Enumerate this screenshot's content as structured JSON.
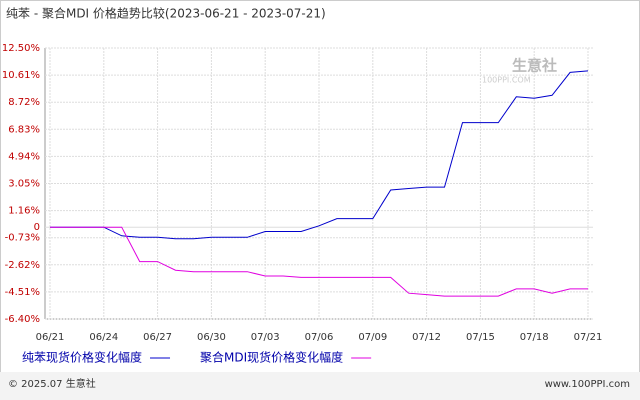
{
  "chart_data": {
    "type": "line",
    "title": "纯苯 - 聚合MDI 价格趋势比较(2023-06-21 - 2023-07-21)",
    "categories": [
      "06/21",
      null,
      null,
      "06/24",
      null,
      null,
      "06/27",
      null,
      null,
      "06/30",
      null,
      null,
      "07/03",
      null,
      null,
      "07/06",
      null,
      null,
      "07/09",
      null,
      null,
      "07/12",
      null,
      null,
      "07/15",
      null,
      null,
      "07/18",
      null,
      null,
      "07/21"
    ],
    "series": [
      {
        "name": "纯苯现货价格变化幅度",
        "color": "#0000cc",
        "values": [
          0,
          0,
          0,
          0,
          -0.6,
          -0.7,
          -0.7,
          -0.8,
          -0.8,
          -0.7,
          -0.7,
          -0.7,
          -0.3,
          -0.3,
          -0.3,
          0.1,
          0.6,
          0.6,
          0.6,
          2.6,
          2.7,
          2.8,
          2.8,
          7.3,
          7.3,
          7.3,
          9.1,
          9.0,
          9.2,
          10.8,
          10.9
        ]
      },
      {
        "name": "聚合MDI现货价格变化幅度",
        "color": "#e000e0",
        "values": [
          0,
          0,
          0,
          0,
          0,
          -2.4,
          -2.4,
          -3.0,
          -3.1,
          -3.1,
          -3.1,
          -3.1,
          -3.4,
          -3.4,
          -3.5,
          -3.5,
          -3.5,
          -3.5,
          -3.5,
          -3.5,
          -4.6,
          -4.7,
          -4.8,
          -4.8,
          -4.8,
          -4.8,
          -4.3,
          -4.3,
          -4.6,
          -4.3,
          -4.3
        ]
      }
    ],
    "ylim": [
      -6.4,
      12.5
    ],
    "yticks": [
      {
        "value": 12.5,
        "label": "12.50%"
      },
      {
        "value": 10.61,
        "label": "10.61%"
      },
      {
        "value": 8.72,
        "label": "8.72%"
      },
      {
        "value": 6.83,
        "label": "6.83%"
      },
      {
        "value": 4.94,
        "label": "4.94%"
      },
      {
        "value": 3.05,
        "label": "3.05%"
      },
      {
        "value": 1.16,
        "label": "1.16%"
      },
      0,
      {
        "value": -0.73,
        "label": "-0.73%"
      },
      {
        "value": -2.62,
        "label": "-2.62%"
      },
      {
        "value": -4.51,
        "label": "-4.51%"
      },
      {
        "value": -6.4,
        "label": "-6.40%"
      }
    ],
    "grid": true,
    "watermark": "生意社",
    "watermark_url": "100PPI.COM",
    "footer_left": "© 2025.07 生意社",
    "footer_right": "www.100PPI.com"
  }
}
